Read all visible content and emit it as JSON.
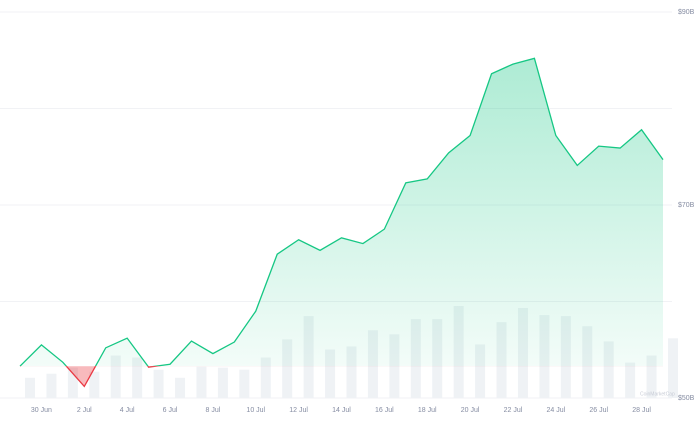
{
  "chart_data": {
    "type": "area",
    "categories": [
      null,
      "30 Jun",
      null,
      "2 Jul",
      null,
      "4 Jul",
      null,
      "6 Jul",
      null,
      "8 Jul",
      null,
      "10 Jul",
      null,
      "12 Jul",
      null,
      "14 Jul",
      null,
      "16 Jul",
      null,
      "18 Jul",
      null,
      "20 Jul",
      null,
      "22 Jul",
      null,
      "24 Jul",
      null,
      "26 Jul",
      null,
      "28 Jul",
      null
    ],
    "values": [
      53.3,
      55.5,
      53.7,
      51.2,
      55.2,
      56.2,
      53.2,
      53.5,
      55.9,
      54.6,
      55.8,
      59.0,
      64.9,
      66.4,
      65.3,
      66.6,
      66.0,
      67.5,
      72.3,
      72.7,
      75.4,
      77.2,
      83.6,
      84.6,
      85.2,
      77.2,
      74.1,
      76.1,
      75.9,
      77.8,
      74.7
    ],
    "volume": [
      20,
      24,
      30,
      26,
      42,
      40,
      28,
      20,
      31,
      30,
      28,
      40,
      58,
      81,
      48,
      51,
      67,
      63,
      78,
      78,
      91,
      53,
      75,
      89,
      82,
      81,
      71,
      56,
      35,
      42,
      59
    ],
    "color": "#16c784",
    "down_color": "#ea3943",
    "volume_color": "#eff2f5",
    "ylim": [
      50,
      90
    ],
    "yticks": [
      {
        "value": 50,
        "label": "$50B"
      },
      {
        "value": 70,
        "label": "$70B"
      },
      {
        "value": 90,
        "label": "$90B"
      }
    ],
    "grid_ticks": [
      60,
      80
    ],
    "grid": true,
    "watermark": "CoinMarketCap"
  }
}
